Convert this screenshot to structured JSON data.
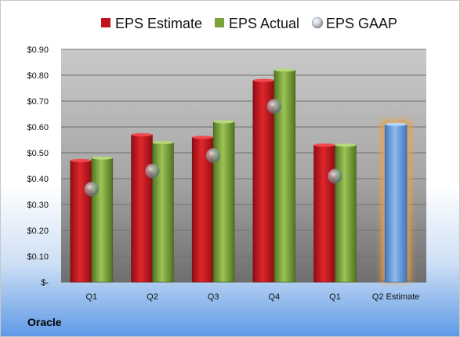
{
  "company": "Oracle",
  "chart_data": {
    "type": "bar",
    "categories": [
      "Q1",
      "Q2",
      "Q3",
      "Q4",
      "Q1",
      "Q2 Estimate"
    ],
    "series": [
      {
        "name": "EPS Estimate",
        "values": [
          0.47,
          0.57,
          0.56,
          0.78,
          0.53,
          null
        ],
        "color": "#c0151b"
      },
      {
        "name": "EPS Actual",
        "values": [
          0.48,
          0.54,
          0.62,
          0.82,
          0.53,
          null
        ],
        "color": "#79a33a"
      },
      {
        "name": "EPS GAAP",
        "values": [
          0.36,
          0.43,
          0.49,
          0.68,
          0.41,
          null
        ],
        "color": "#b3c0cc"
      }
    ],
    "estimate_bar": {
      "category": "Q2 Estimate",
      "value": 0.61,
      "color": "#6fa4e0",
      "glow": "#f0a040"
    },
    "yticks": [
      "$-",
      "$0.10",
      "$0.20",
      "$0.30",
      "$0.40",
      "$0.50",
      "$0.60",
      "$0.70",
      "$0.80",
      "$0.90"
    ],
    "ylim": [
      0,
      0.9
    ],
    "grid": true,
    "legend_position": "top"
  }
}
